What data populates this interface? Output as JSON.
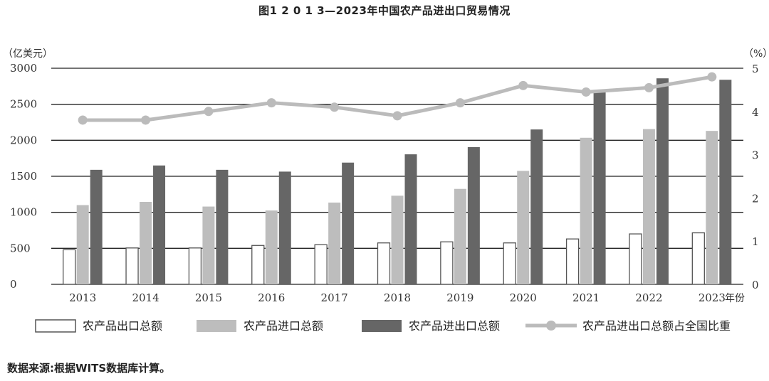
{
  "title": "图1 2 0 1 3—2023年中国农产品进出口贸易情况",
  "source": "数据来源:根据WITS数据库计算。",
  "chart_data": {
    "type": "bar",
    "categories": [
      "2013",
      "2014",
      "2015",
      "2016",
      "2017",
      "2018",
      "2019",
      "2020",
      "2021",
      "2022",
      "2023"
    ],
    "x_unit": "年份",
    "y_left_unit": "（亿美元）",
    "y_right_unit": "（%）",
    "y_left_ticks": [
      "0",
      "500",
      "1000",
      "1500",
      "2000",
      "2500",
      "3000"
    ],
    "y_right_ticks": [
      "0",
      "1",
      "2",
      "3",
      "4",
      "5"
    ],
    "ylim_left": [
      0,
      3000
    ],
    "ylim_right": [
      0,
      5
    ],
    "series": [
      {
        "name": "农产品出口总额",
        "type": "bar",
        "axis": "left",
        "color": "#ffffff",
        "stroke": "#555555",
        "values": [
          480,
          505,
          505,
          540,
          550,
          575,
          590,
          575,
          630,
          700,
          715
        ]
      },
      {
        "name": "农产品进口总额",
        "type": "bar",
        "axis": "left",
        "color": "#bdbdbd",
        "values": [
          1100,
          1145,
          1080,
          1025,
          1135,
          1230,
          1325,
          1575,
          2035,
          2155,
          2130
        ]
      },
      {
        "name": "农产品进出口总额",
        "type": "bar",
        "axis": "left",
        "color": "#666666",
        "values": [
          1590,
          1650,
          1590,
          1565,
          1690,
          1805,
          1905,
          2150,
          2670,
          2860,
          2840
        ]
      },
      {
        "name": "农产品进出口总额占全国比重",
        "type": "line",
        "axis": "right",
        "color": "#bbbbbb",
        "values": [
          3.8,
          3.8,
          4.0,
          4.2,
          4.1,
          3.9,
          4.2,
          4.6,
          4.45,
          4.55,
          4.8
        ]
      }
    ],
    "grid": "horizontal",
    "legend_position": "bottom"
  }
}
